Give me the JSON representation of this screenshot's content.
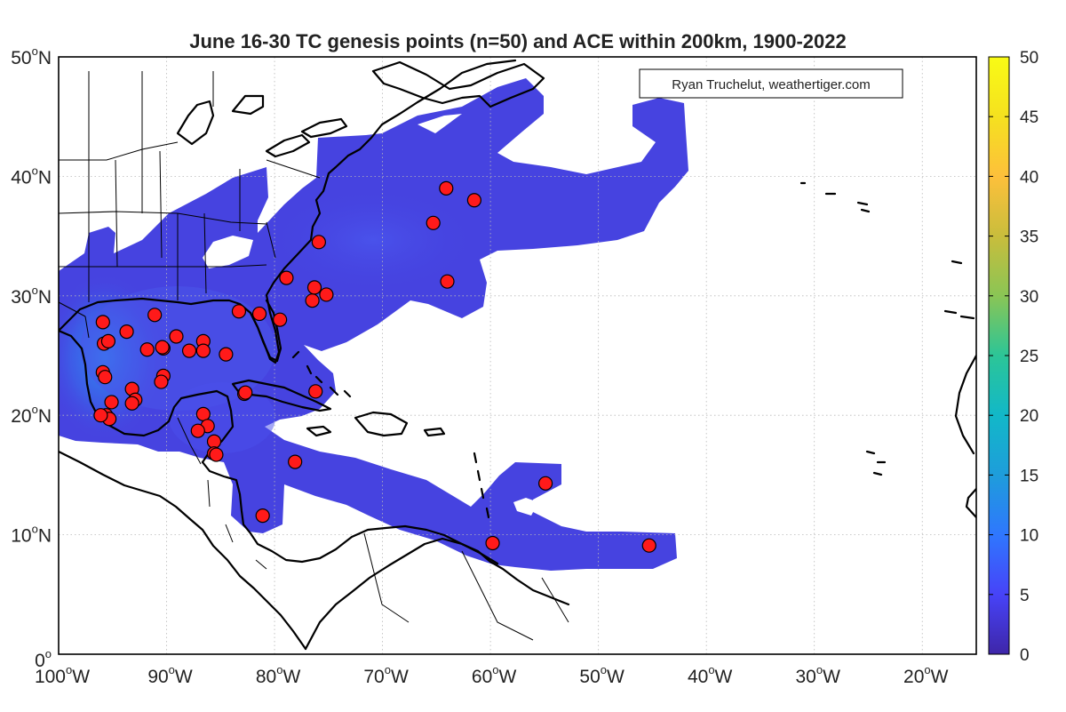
{
  "title": "June 16-30 TC genesis points (n=50) and ACE within 200km, 1900-2022",
  "credit": "Ryan Truchelut, weathertiger.com",
  "map": {
    "lon_range": [
      -100,
      -15
    ],
    "lat_range": [
      0,
      50
    ],
    "lon_ticks": [
      {
        "value": -100,
        "num": "100",
        "hem": "W"
      },
      {
        "value": -90,
        "num": "90",
        "hem": "W"
      },
      {
        "value": -80,
        "num": "80",
        "hem": "W"
      },
      {
        "value": -70,
        "num": "70",
        "hem": "W"
      },
      {
        "value": -60,
        "num": "60",
        "hem": "W"
      },
      {
        "value": -50,
        "num": "50",
        "hem": "W"
      },
      {
        "value": -40,
        "num": "40",
        "hem": "W"
      },
      {
        "value": -30,
        "num": "30",
        "hem": "W"
      },
      {
        "value": -20,
        "num": "20",
        "hem": "W"
      }
    ],
    "lat_ticks": [
      {
        "value": 0,
        "num": "0",
        "hem": ""
      },
      {
        "value": 10,
        "num": "10",
        "hem": "N"
      },
      {
        "value": 20,
        "num": "20",
        "hem": "N"
      },
      {
        "value": 30,
        "num": "30",
        "hem": "N"
      },
      {
        "value": 40,
        "num": "40",
        "hem": "N"
      },
      {
        "value": 50,
        "num": "50",
        "hem": "N"
      }
    ],
    "degree_symbol": "o",
    "grid": true
  },
  "colorbar": {
    "min": 0,
    "max": 50,
    "ticks": [
      "0",
      "5",
      "10",
      "15",
      "20",
      "25",
      "30",
      "35",
      "40",
      "45",
      "50"
    ]
  },
  "colors": {
    "ace_low": "#3e26a8",
    "ace_mid": "#2c8ef0",
    "genesis_fill": "#ff1a1a",
    "parula": [
      "#3e26a8",
      "#4743f8",
      "#2f77fe",
      "#1e9ddb",
      "#12b8c8",
      "#2cc597",
      "#8ac555",
      "#ddb935",
      "#fdc03b",
      "#f5e11f",
      "#f9fb15"
    ]
  },
  "genesis_points": [
    {
      "lon": -95.9,
      "lat": 27.8
    },
    {
      "lon": -95.8,
      "lat": 26.0
    },
    {
      "lon": -95.4,
      "lat": 26.2
    },
    {
      "lon": -93.7,
      "lat": 27.0
    },
    {
      "lon": -91.1,
      "lat": 28.4
    },
    {
      "lon": -91.8,
      "lat": 25.5
    },
    {
      "lon": -90.3,
      "lat": 25.6
    },
    {
      "lon": -89.1,
      "lat": 26.6
    },
    {
      "lon": -86.6,
      "lat": 26.2
    },
    {
      "lon": -86.6,
      "lat": 25.4
    },
    {
      "lon": -87.9,
      "lat": 25.4
    },
    {
      "lon": -84.5,
      "lat": 25.1
    },
    {
      "lon": -95.9,
      "lat": 23.6
    },
    {
      "lon": -95.7,
      "lat": 23.2
    },
    {
      "lon": -90.3,
      "lat": 23.3
    },
    {
      "lon": -90.5,
      "lat": 22.8
    },
    {
      "lon": -93.2,
      "lat": 22.2
    },
    {
      "lon": -92.9,
      "lat": 21.3
    },
    {
      "lon": -93.2,
      "lat": 21.0
    },
    {
      "lon": -95.1,
      "lat": 21.1
    },
    {
      "lon": -95.6,
      "lat": 20.0
    },
    {
      "lon": -95.3,
      "lat": 19.7
    },
    {
      "lon": -86.6,
      "lat": 20.1
    },
    {
      "lon": -86.2,
      "lat": 19.1
    },
    {
      "lon": -87.1,
      "lat": 18.7
    },
    {
      "lon": -85.6,
      "lat": 17.8
    },
    {
      "lon": -85.6,
      "lat": 16.8
    },
    {
      "lon": -85.4,
      "lat": 16.7
    },
    {
      "lon": -83.3,
      "lat": 28.7
    },
    {
      "lon": -81.4,
      "lat": 28.5
    },
    {
      "lon": -79.5,
      "lat": 28.0
    },
    {
      "lon": -82.8,
      "lat": 21.8
    },
    {
      "lon": -81.1,
      "lat": 11.6
    },
    {
      "lon": -78.1,
      "lat": 16.1
    },
    {
      "lon": -76.2,
      "lat": 22.0
    },
    {
      "lon": -78.9,
      "lat": 31.5
    },
    {
      "lon": -76.5,
      "lat": 29.6
    },
    {
      "lon": -76.3,
      "lat": 30.7
    },
    {
      "lon": -75.2,
      "lat": 30.1
    },
    {
      "lon": -75.9,
      "lat": 34.5
    },
    {
      "lon": -64.1,
      "lat": 39.0
    },
    {
      "lon": -61.5,
      "lat": 38.0
    },
    {
      "lon": -65.3,
      "lat": 36.1
    },
    {
      "lon": -64.0,
      "lat": 31.2
    },
    {
      "lon": -59.8,
      "lat": 9.3
    },
    {
      "lon": -54.9,
      "lat": 14.3
    },
    {
      "lon": -45.3,
      "lat": 9.1
    },
    {
      "lon": -96.1,
      "lat": 20.0
    },
    {
      "lon": -82.7,
      "lat": 21.9
    },
    {
      "lon": -90.4,
      "lat": 25.7
    }
  ]
}
